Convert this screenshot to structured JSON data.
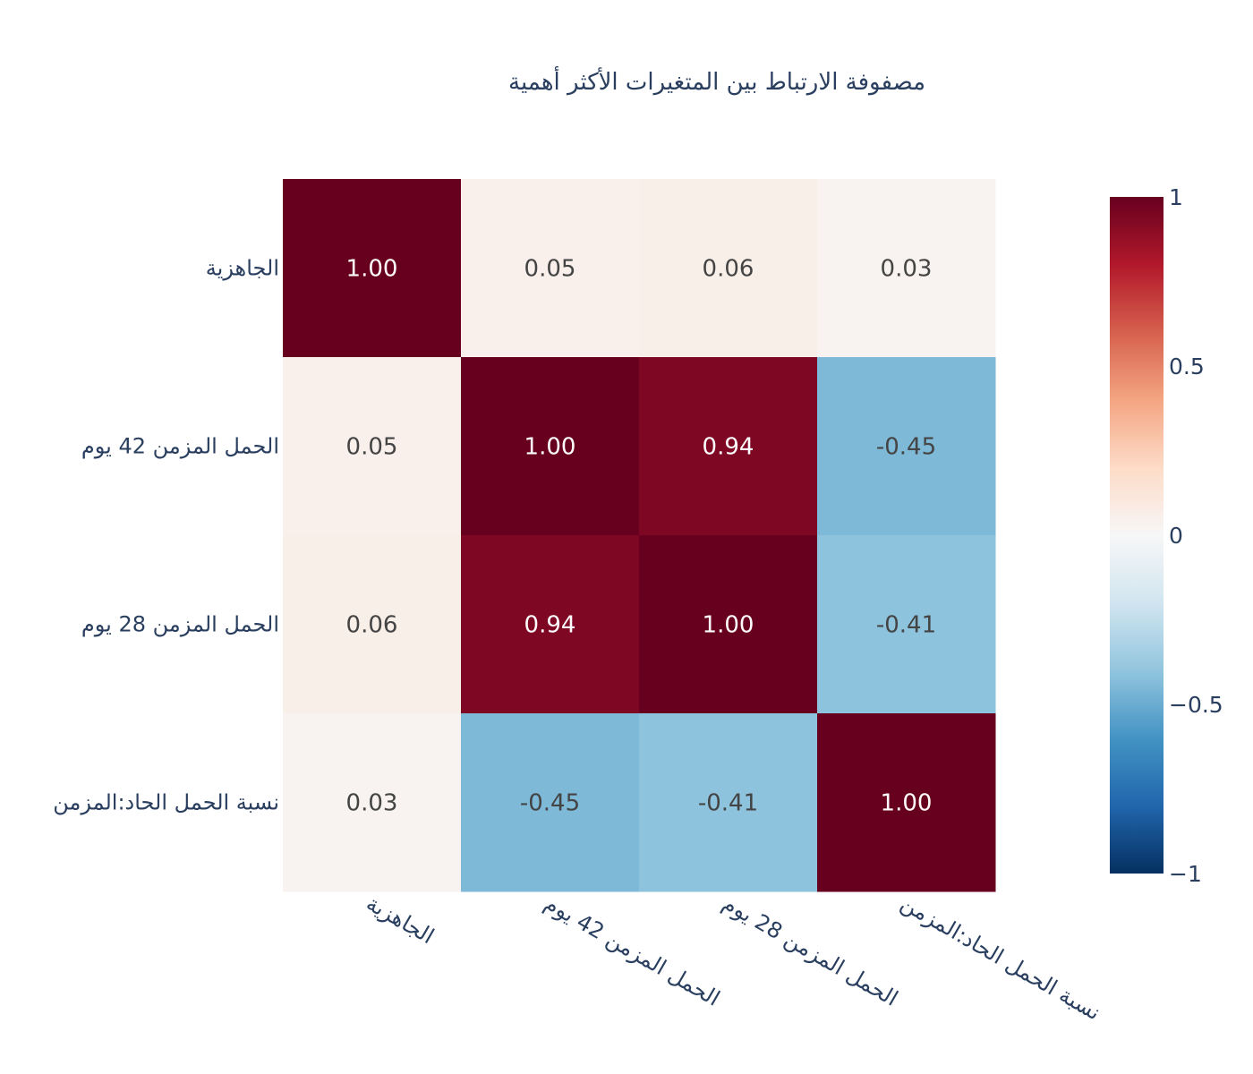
{
  "chart_data": {
    "type": "heatmap",
    "title": "مصفوفة الارتباط بين المتغيرات الأكثر أهمية",
    "x_labels": [
      "الجاهزية",
      "الحمل المزمن 42 يوم",
      "الحمل المزمن 28 يوم",
      "نسبة الحمل الحاد:المزمن"
    ],
    "y_labels": [
      "الجاهزية",
      "الحمل المزمن 42 يوم",
      "الحمل المزمن 28 يوم",
      "نسبة الحمل الحاد:المزمن"
    ],
    "values": [
      [
        1.0,
        0.05,
        0.06,
        0.03
      ],
      [
        0.05,
        1.0,
        0.94,
        -0.45
      ],
      [
        0.06,
        0.94,
        1.0,
        -0.41
      ],
      [
        0.03,
        -0.45,
        -0.41,
        1.0
      ]
    ],
    "cell_labels": [
      [
        "1.00",
        "0.05",
        "0.06",
        "0.03"
      ],
      [
        "0.05",
        "1.00",
        "0.94",
        "-0.45"
      ],
      [
        "0.06",
        "0.94",
        "1.00",
        "-0.41"
      ],
      [
        "0.03",
        "-0.45",
        "-0.41",
        "1.00"
      ]
    ],
    "zrange": [
      -1,
      1
    ],
    "colorscale": "RdBu",
    "colorbar": {
      "ticks": [
        1,
        0.5,
        0,
        -0.5,
        -1
      ],
      "tick_labels": [
        "1",
        "0.5",
        "0",
        "−0.5",
        "−1"
      ],
      "placement": "right"
    },
    "x_tick_angle_deg": 30,
    "grid": false
  },
  "colors": {
    "text": "#2a3f5f",
    "cell_text_dark": "#444444",
    "cell_text_light": "#ffffff",
    "scale": [
      "#053061",
      "#2166ac",
      "#4393c3",
      "#92c5de",
      "#d1e5f0",
      "#f7f7f7",
      "#fddbc7",
      "#f4a582",
      "#d6604d",
      "#b2182b",
      "#67001f"
    ]
  }
}
